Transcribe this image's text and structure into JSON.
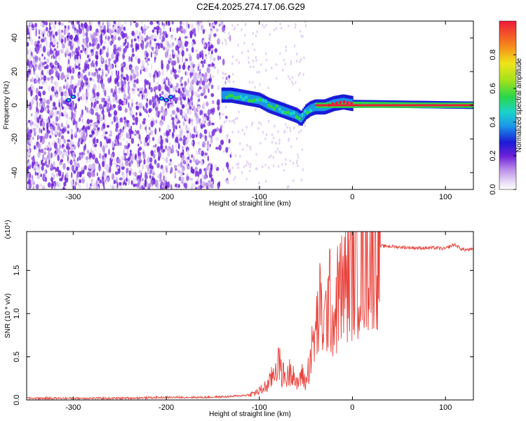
{
  "title": "C2E4.2025.274.17.06.G29",
  "chart_data": [
    {
      "type": "heatmap",
      "xlabel": "Height of straight line (km)",
      "ylabel": "Frequency (Hz)",
      "xlim": [
        -350,
        130
      ],
      "ylim": [
        -50,
        50
      ],
      "xticks": [
        -300,
        -200,
        -100,
        0,
        100
      ],
      "yticks": [
        -40,
        -20,
        0,
        20,
        40
      ],
      "colorbar": {
        "label": "Normalized spectral amplitude",
        "range": [
          0.0,
          1.0
        ],
        "ticks": [
          0.0,
          0.2,
          0.4,
          0.6,
          0.8
        ]
      },
      "feature_track": {
        "x": [
          -140,
          -130,
          -120,
          -110,
          -100,
          -90,
          -80,
          -70,
          -60,
          -55,
          -50,
          -45,
          -40,
          -30,
          -20,
          -10,
          0,
          130
        ],
        "freq": [
          6,
          6,
          5,
          4,
          3,
          0,
          -2,
          -4,
          -6,
          -8,
          -4,
          -2,
          -1,
          -1,
          1,
          2,
          1,
          0
        ]
      },
      "noise_region_x": [
        -350,
        -140
      ]
    },
    {
      "type": "line",
      "xlabel": "Height of straight line (km)",
      "ylabel": "SNR (10 * v/v)",
      "multiplier_label": "(x10⁴)",
      "xlim": [
        -350,
        130
      ],
      "ylim": [
        0,
        1.95
      ],
      "xticks": [
        -300,
        -200,
        -100,
        0,
        100
      ],
      "yticks": [
        0.0,
        0.5,
        1.0,
        1.5
      ],
      "series": [
        {
          "name": "SNR",
          "color": "#e8413a",
          "x": [
            -350,
            -300,
            -250,
            -200,
            -160,
            -130,
            -110,
            -100,
            -90,
            -85,
            -80,
            -75,
            -70,
            -65,
            -60,
            -55,
            -50,
            -45,
            -40,
            -35,
            -30,
            -25,
            -20,
            -15,
            -10,
            -5,
            0,
            10,
            20,
            30,
            40,
            50,
            70,
            90,
            100,
            105,
            110,
            115,
            120,
            130
          ],
          "y": [
            0.02,
            0.02,
            0.02,
            0.03,
            0.03,
            0.04,
            0.06,
            0.1,
            0.18,
            0.3,
            0.45,
            0.3,
            0.25,
            0.4,
            0.15,
            0.3,
            0.2,
            0.5,
            0.75,
            1.05,
            0.85,
            1.2,
            0.9,
            1.25,
            1.3,
            1.4,
            1.5,
            1.55,
            1.7,
            1.78,
            1.78,
            1.77,
            1.76,
            1.76,
            1.75,
            1.78,
            1.8,
            1.76,
            1.74,
            1.74
          ]
        }
      ]
    }
  ]
}
